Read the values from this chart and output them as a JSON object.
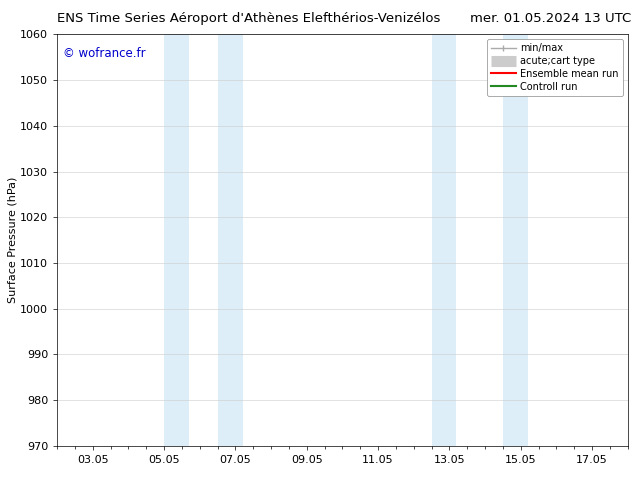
{
  "title_left": "ENS Time Series Aéroport d'Athènes Elefthérios-Venizélos",
  "title_right": "mer. 01.05.2024 13 UTC",
  "ylabel": "Surface Pressure (hPa)",
  "ylim": [
    970,
    1060
  ],
  "yticks": [
    970,
    980,
    990,
    1000,
    1010,
    1020,
    1030,
    1040,
    1050,
    1060
  ],
  "xlim_start": 0,
  "xlim_end": 16,
  "xtick_labels": [
    "03.05",
    "05.05",
    "07.05",
    "09.05",
    "11.05",
    "13.05",
    "15.05",
    "17.05"
  ],
  "xtick_positions": [
    1,
    3,
    5,
    7,
    9,
    11,
    13,
    15
  ],
  "shaded_bands": [
    {
      "x_start": 3.0,
      "x_end": 3.7,
      "color": "#ddeef8"
    },
    {
      "x_start": 4.5,
      "x_end": 5.2,
      "color": "#ddeef8"
    },
    {
      "x_start": 10.5,
      "x_end": 11.2,
      "color": "#ddeef8"
    },
    {
      "x_start": 12.5,
      "x_end": 13.2,
      "color": "#ddeef8"
    }
  ],
  "watermark_text": "© wofrance.fr",
  "watermark_color": "#0000cc",
  "legend_entries": [
    {
      "label": "min/max",
      "color": "#aaaaaa",
      "lw": 1.5
    },
    {
      "label": "acute;cart type",
      "color": "#cccccc",
      "lw": 8
    },
    {
      "label": "Ensemble mean run",
      "color": "#ff0000",
      "lw": 1.5
    },
    {
      "label": "Controll run",
      "color": "#228822",
      "lw": 1.5
    }
  ],
  "background_color": "#ffffff",
  "grid_color": "#cccccc",
  "title_fontsize": 9.5,
  "axis_fontsize": 8,
  "tick_fontsize": 8,
  "watermark_fontsize": 8.5
}
